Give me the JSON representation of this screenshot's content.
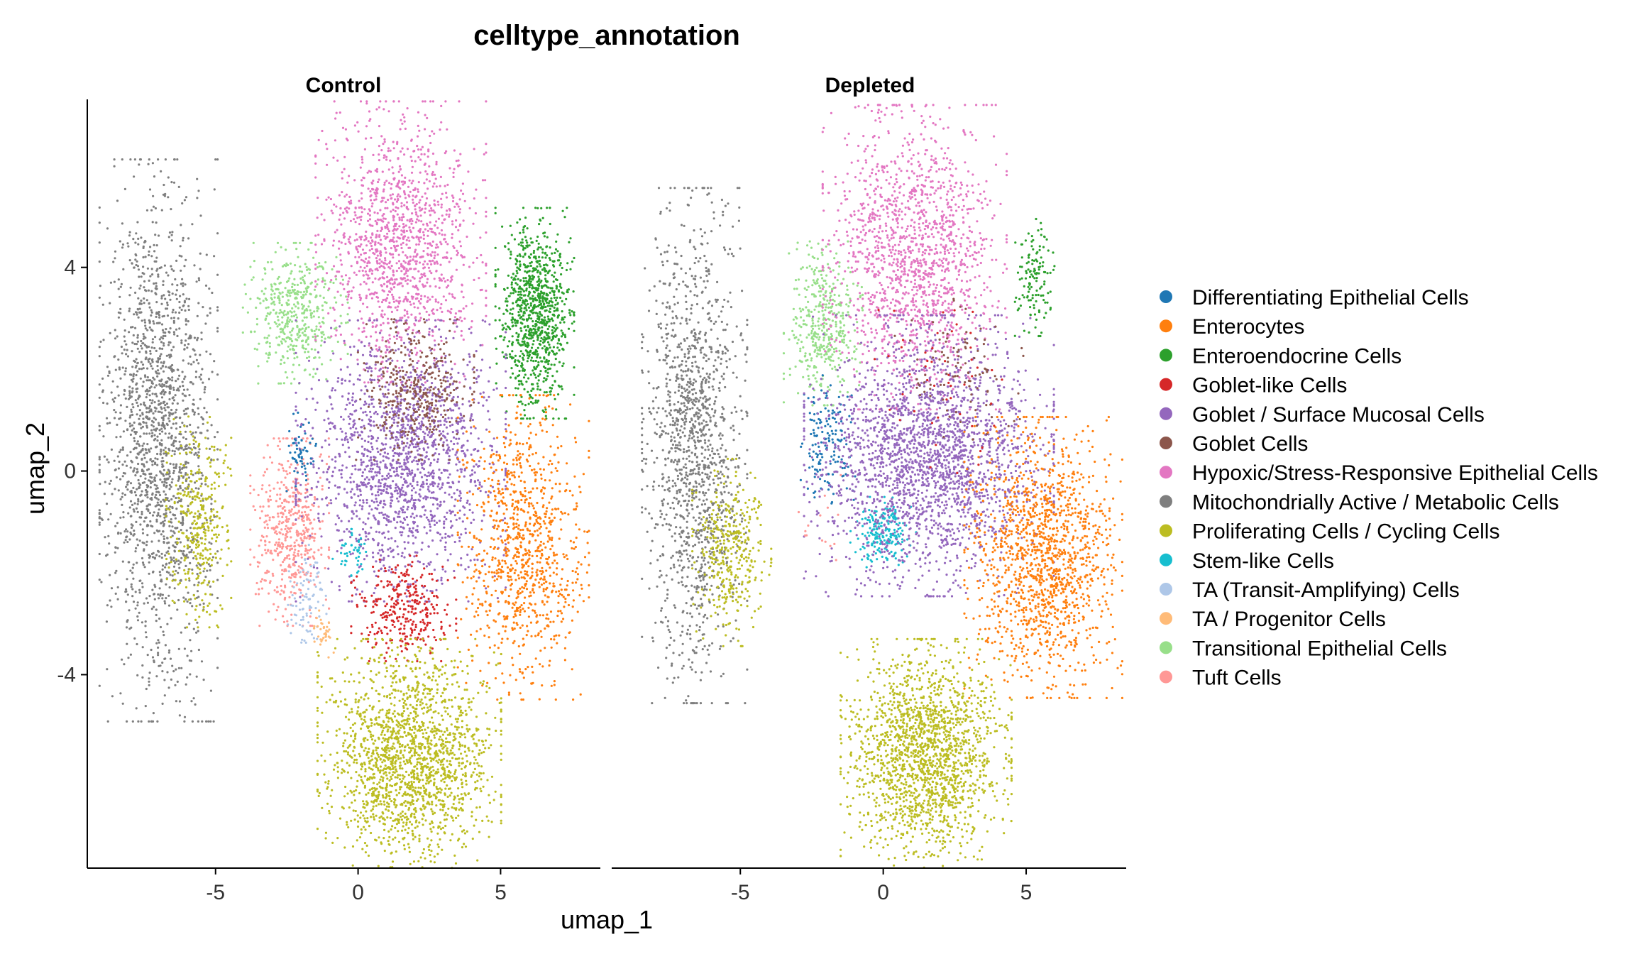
{
  "chart_data": {
    "type": "scatter",
    "title": "celltype_annotation",
    "xlabel": "umap_1",
    "ylabel": "umap_2",
    "xlim": [
      -9.5,
      8.5
    ],
    "ylim": [
      -7.8,
      7.3
    ],
    "xticks": [
      -5,
      0,
      5
    ],
    "yticks": [
      -4,
      0,
      4
    ],
    "tick_labels_x": [
      "-5",
      "0",
      "5"
    ],
    "tick_labels_y": [
      "-4",
      "0",
      "4"
    ],
    "grid": false,
    "legend_position": "right",
    "panels": [
      {
        "name": "Control",
        "clusters": [
          {
            "category": "Mitochondrially Active / Metabolic Cells",
            "center": [
              -7.0,
              0.6
            ],
            "spread": [
              0.9,
              2.4
            ],
            "count": 1800
          },
          {
            "category": "Proliferating Cells / Cycling Cells",
            "center": [
              -5.6,
              -1.0
            ],
            "spread": [
              0.5,
              0.9
            ],
            "count": 350
          },
          {
            "category": "Transitional Epithelial Cells",
            "center": [
              -2.2,
              3.1
            ],
            "spread": [
              0.8,
              0.6
            ],
            "count": 450
          },
          {
            "category": "Tuft Cells",
            "center": [
              -2.4,
              -1.2
            ],
            "spread": [
              0.6,
              0.8
            ],
            "count": 500
          },
          {
            "category": "TA (Transit-Amplifying) Cells",
            "center": [
              -1.8,
              -2.6
            ],
            "spread": [
              0.3,
              0.5
            ],
            "count": 90
          },
          {
            "category": "TA / Progenitor Cells",
            "center": [
              -1.2,
              -3.2
            ],
            "spread": [
              0.15,
              0.2
            ],
            "count": 35
          },
          {
            "category": "Hypoxic/Stress-Responsive Epithelial Cells",
            "center": [
              1.5,
              4.5
            ],
            "spread": [
              1.3,
              1.2
            ],
            "count": 1300
          },
          {
            "category": "Enteroendocrine Cells",
            "center": [
              6.2,
              3.1
            ],
            "spread": [
              0.6,
              0.9
            ],
            "count": 950
          },
          {
            "category": "Goblet / Surface Mucosal Cells",
            "center": [
              1.5,
              0.2
            ],
            "spread": [
              1.6,
              1.2
            ],
            "count": 1700
          },
          {
            "category": "Goblet Cells",
            "center": [
              2.0,
              1.6
            ],
            "spread": [
              0.9,
              0.6
            ],
            "count": 380
          },
          {
            "category": "Goblet-like Cells",
            "center": [
              1.6,
              -2.7
            ],
            "spread": [
              0.8,
              0.45
            ],
            "count": 330
          },
          {
            "category": "Enterocytes",
            "center": [
              5.8,
              -1.5
            ],
            "spread": [
              1.0,
              1.3
            ],
            "count": 950
          },
          {
            "category": "Proliferating Cells / Cycling Cells",
            "center": [
              1.8,
              -5.6
            ],
            "spread": [
              1.4,
              1.0
            ],
            "count": 1800
          },
          {
            "category": "Differentiating Epithelial Cells",
            "center": [
              -2.0,
              0.4
            ],
            "spread": [
              0.25,
              0.35
            ],
            "count": 60
          },
          {
            "category": "Stem-like Cells",
            "center": [
              -0.2,
              -1.6
            ],
            "spread": [
              0.3,
              0.2
            ],
            "count": 45
          }
        ]
      },
      {
        "name": "Depleted",
        "clusters": [
          {
            "category": "Mitochondrially Active / Metabolic Cells",
            "center": [
              -6.6,
              0.5
            ],
            "spread": [
              0.8,
              2.2
            ],
            "count": 1400
          },
          {
            "category": "Proliferating Cells / Cycling Cells",
            "center": [
              -5.3,
              -1.6
            ],
            "spread": [
              0.6,
              0.8
            ],
            "count": 380
          },
          {
            "category": "Transitional Epithelial Cells",
            "center": [
              -2.1,
              2.9
            ],
            "spread": [
              0.6,
              0.7
            ],
            "count": 420
          },
          {
            "category": "Differentiating Epithelial Cells",
            "center": [
              -2.0,
              0.5
            ],
            "spread": [
              0.5,
              0.6
            ],
            "count": 150
          },
          {
            "category": "Stem-like Cells",
            "center": [
              0.0,
              -1.2
            ],
            "spread": [
              0.5,
              0.3
            ],
            "count": 200
          },
          {
            "category": "Hypoxic/Stress-Responsive Epithelial Cells",
            "center": [
              1.1,
              4.2
            ],
            "spread": [
              1.4,
              1.3
            ],
            "count": 1500
          },
          {
            "category": "Goblet / Surface Mucosal Cells",
            "center": [
              1.6,
              0.3
            ],
            "spread": [
              1.9,
              1.2
            ],
            "count": 2300
          },
          {
            "category": "Enteroendocrine Cells",
            "center": [
              5.3,
              3.8
            ],
            "spread": [
              0.3,
              0.5
            ],
            "count": 130
          },
          {
            "category": "Enterocytes",
            "center": [
              5.6,
              -1.7
            ],
            "spread": [
              1.2,
              1.2
            ],
            "count": 1400
          },
          {
            "category": "Proliferating Cells / Cycling Cells",
            "center": [
              1.5,
              -5.6
            ],
            "spread": [
              1.3,
              1.0
            ],
            "count": 1800
          },
          {
            "category": "Goblet Cells",
            "center": [
              2.6,
              2.0
            ],
            "spread": [
              1.0,
              0.6
            ],
            "count": 100
          },
          {
            "category": "Goblet-like Cells",
            "center": [
              2.0,
              1.8
            ],
            "spread": [
              1.0,
              0.8
            ],
            "count": 50
          },
          {
            "category": "Tuft Cells",
            "center": [
              -2.2,
              -1.0
            ],
            "spread": [
              0.4,
              0.4
            ],
            "count": 15
          }
        ]
      }
    ],
    "legend": [
      {
        "label": "Differentiating Epithelial Cells",
        "color": "#1F77B4"
      },
      {
        "label": "Enterocytes",
        "color": "#FF7F0E"
      },
      {
        "label": "Enteroendocrine Cells",
        "color": "#2CA02C"
      },
      {
        "label": "Goblet-like Cells",
        "color": "#D62728"
      },
      {
        "label": "Goblet / Surface Mucosal Cells",
        "color": "#9467BD"
      },
      {
        "label": "Goblet Cells",
        "color": "#8C564B"
      },
      {
        "label": "Hypoxic/Stress-Responsive Epithelial Cells",
        "color": "#E377C2"
      },
      {
        "label": "Mitochondrially Active / Metabolic Cells",
        "color": "#7F7F7F"
      },
      {
        "label": "Proliferating Cells / Cycling Cells",
        "color": "#BCBD22"
      },
      {
        "label": "Stem-like Cells",
        "color": "#17BECF"
      },
      {
        "label": "TA (Transit-Amplifying) Cells",
        "color": "#AEC7E8"
      },
      {
        "label": "TA / Progenitor Cells",
        "color": "#FFBB78"
      },
      {
        "label": "Transitional Epithelial Cells",
        "color": "#98DF8A"
      },
      {
        "label": "Tuft Cells",
        "color": "#FF9896"
      }
    ]
  }
}
